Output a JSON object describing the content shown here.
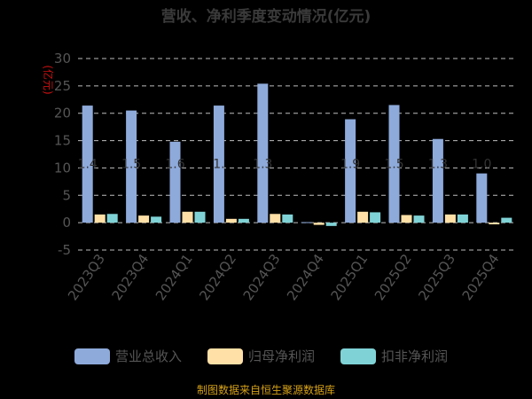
{
  "chart_data": {
    "type": "bar",
    "title": "营收、净利季度变动情况(亿元)",
    "unit_label": "(亿元)",
    "categories": [
      "2023Q3",
      "2023Q4",
      "2024Q1",
      "2024Q2",
      "2024Q3",
      "2024Q4",
      "2025Q1",
      "2025Q2",
      "2025Q3",
      "2025Q4"
    ],
    "series": [
      {
        "name": "营业总收入",
        "color": "#8eaadb",
        "values": [
          21.4,
          20.5,
          14.8,
          21.4,
          25.4,
          0.1,
          18.9,
          21.5,
          15.3,
          9.0
        ]
      },
      {
        "name": "归母净利润",
        "color": "#ffe0a6",
        "values": [
          1.5,
          1.3,
          2.0,
          0.7,
          1.6,
          -0.4,
          2.0,
          1.4,
          1.5,
          -0.3
        ]
      },
      {
        "name": "扣非净利润",
        "color": "#7fd3d6",
        "values": [
          1.6,
          1.1,
          2.0,
          0.7,
          1.5,
          -0.6,
          1.9,
          1.3,
          1.5,
          0.9
        ]
      }
    ],
    "ylim": [
      -5,
      30
    ],
    "yticks": [
      30,
      25,
      20,
      15,
      10,
      5,
      0,
      -5
    ],
    "grid": true,
    "legend_position": "bottom",
    "bar_labels": [
      "1.4",
      "1.5",
      "1.6",
      "1.",
      "1.3",
      "",
      "1.9",
      "1.5",
      "1.3",
      "1.0"
    ],
    "source": "制图数据来自恒生聚源数据库"
  }
}
